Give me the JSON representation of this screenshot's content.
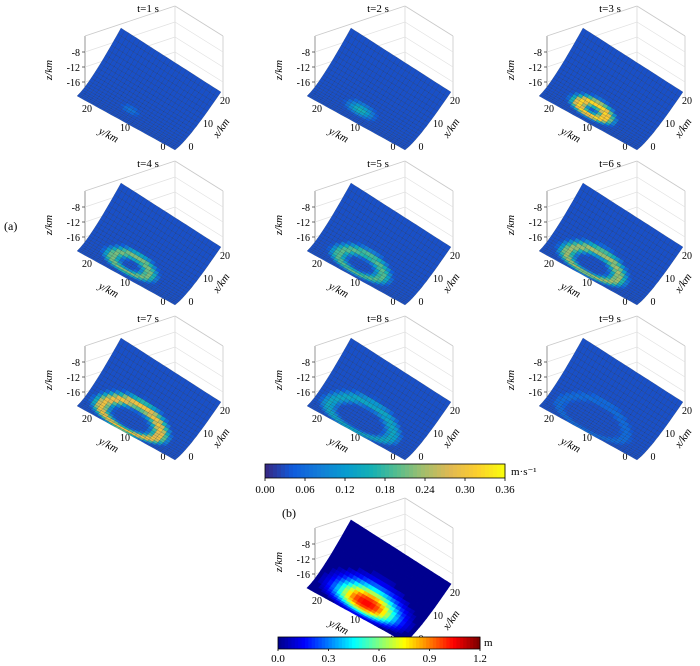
{
  "figure": {
    "panel_a_label": "(a)",
    "panel_b_label": "(b)"
  },
  "chart_data": [
    {
      "type": "heatmap",
      "panel": "(a)",
      "description_of_quantity": "slip rate snapshots on curved fault surface",
      "colorbar": {
        "unit": "m·s⁻¹",
        "ticks": [
          "0.00",
          "0.06",
          "0.12",
          "0.18",
          "0.24",
          "0.30",
          "0.36"
        ],
        "range": [
          0,
          0.36
        ],
        "colormap": "parula"
      },
      "axes": {
        "x": {
          "label": "x/km",
          "ticks": [
            "0",
            "10",
            "20"
          ]
        },
        "y": {
          "label": "y/km",
          "ticks": [
            "20",
            "10",
            "0"
          ]
        },
        "z": {
          "label": "z/km",
          "ticks": [
            "-8",
            "-12",
            "-16"
          ]
        }
      },
      "snapshots": [
        {
          "title": "t=1 s",
          "t": 1,
          "pattern": "blob",
          "peak": 0.07,
          "ring_radius": 0.0,
          "width": 0.55
        },
        {
          "title": "t=2 s",
          "t": 2,
          "pattern": "blob",
          "peak": 0.16,
          "ring_radius": 0.0,
          "width": 0.7
        },
        {
          "title": "t=3 s",
          "t": 3,
          "pattern": "ring",
          "peak": 0.33,
          "ring_radius": 0.55,
          "width": 0.25
        },
        {
          "title": "t=4 s",
          "t": 4,
          "pattern": "ring",
          "peak": 0.22,
          "ring_radius": 0.75,
          "width": 0.25
        },
        {
          "title": "t=5 s",
          "t": 5,
          "pattern": "ring",
          "peak": 0.2,
          "ring_radius": 0.9,
          "width": 0.25
        },
        {
          "title": "t=6 s",
          "t": 6,
          "pattern": "ring",
          "peak": 0.24,
          "ring_radius": 1.05,
          "width": 0.25
        },
        {
          "title": "t=7 s",
          "t": 7,
          "pattern": "ring",
          "peak": 0.3,
          "ring_radius": 1.2,
          "width": 0.25
        },
        {
          "title": "t=8 s",
          "t": 8,
          "pattern": "ring",
          "peak": 0.14,
          "ring_radius": 1.3,
          "width": 0.25
        },
        {
          "title": "t=9 s",
          "t": 9,
          "pattern": "ring",
          "peak": 0.06,
          "ring_radius": 1.35,
          "width": 0.25
        }
      ]
    },
    {
      "type": "heatmap",
      "panel": "(b)",
      "description_of_quantity": "final slip on curved fault surface",
      "colorbar": {
        "unit": "m",
        "ticks": [
          "0.0",
          "0.3",
          "0.6",
          "0.9",
          "1.2"
        ],
        "range": [
          0,
          1.2
        ],
        "colormap": "jet"
      },
      "axes": {
        "x": {
          "label": "x/km",
          "ticks": [
            "0",
            "10",
            "20"
          ]
        },
        "y": {
          "label": "y/km",
          "ticks": [
            "20",
            "10",
            "0"
          ]
        },
        "z": {
          "label": "z/km",
          "ticks": [
            "-8",
            "-12",
            "-16"
          ]
        }
      },
      "peak_slip": 1.05
    }
  ]
}
